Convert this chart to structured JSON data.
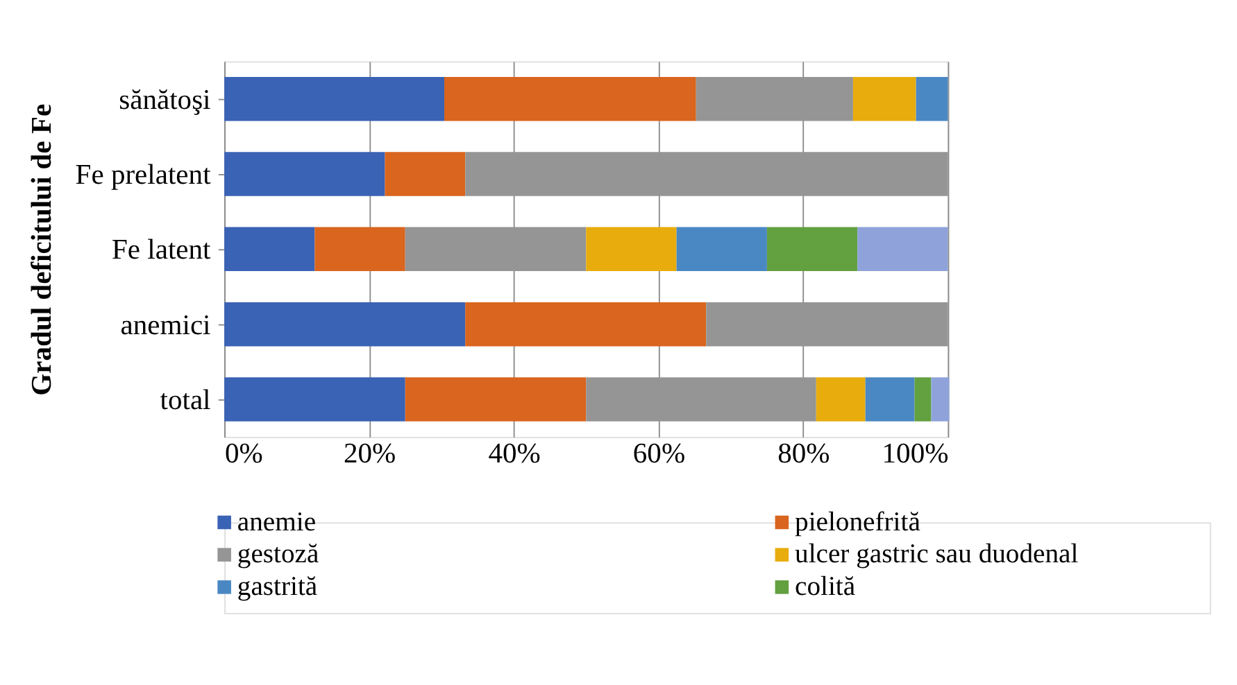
{
  "chart_data": {
    "type": "bar",
    "orientation": "horizontal",
    "stacked": true,
    "ylabel": "Gradul deficitului de Fe",
    "categories": [
      "sănătoşi",
      "Fe prelatent",
      "Fe latent",
      "anemici",
      "total"
    ],
    "series": [
      {
        "name": "anemie",
        "color": "#3a62b5",
        "values": [
          30.4,
          22.2,
          12.5,
          33.3,
          25
        ]
      },
      {
        "name": "pielonefrită",
        "color": "#d9651e",
        "values": [
          34.8,
          11.1,
          12.5,
          33.3,
          25
        ]
      },
      {
        "name": "gestoză",
        "color": "#959595",
        "values": [
          21.7,
          66.7,
          25,
          33.4,
          31.8
        ]
      },
      {
        "name": "ulcer gastric sau duodenal",
        "color": "#e8ac0d",
        "values": [
          8.7,
          0,
          12.5,
          0,
          6.8
        ]
      },
      {
        "name": "gastrită",
        "color": "#4a88c4",
        "values": [
          4.4,
          0,
          12.5,
          0,
          6.8
        ]
      },
      {
        "name": "colită",
        "color": "#62a040",
        "values": [
          0,
          0,
          12.5,
          0,
          2.3
        ]
      },
      {
        "color": "#8fa3da",
        "values": [
          0,
          0,
          12.5,
          0,
          2.5
        ]
      }
    ],
    "xlim": [
      0,
      100
    ],
    "xticks": [
      {
        "value": 0,
        "label": "0%"
      },
      {
        "value": 20,
        "label": "20%"
      },
      {
        "value": 40,
        "label": "40%"
      },
      {
        "value": 60,
        "label": "60%"
      },
      {
        "value": 80,
        "label": "80%"
      },
      {
        "value": 100,
        "label": "100%"
      }
    ],
    "grid": "x",
    "legend": "bottom"
  }
}
